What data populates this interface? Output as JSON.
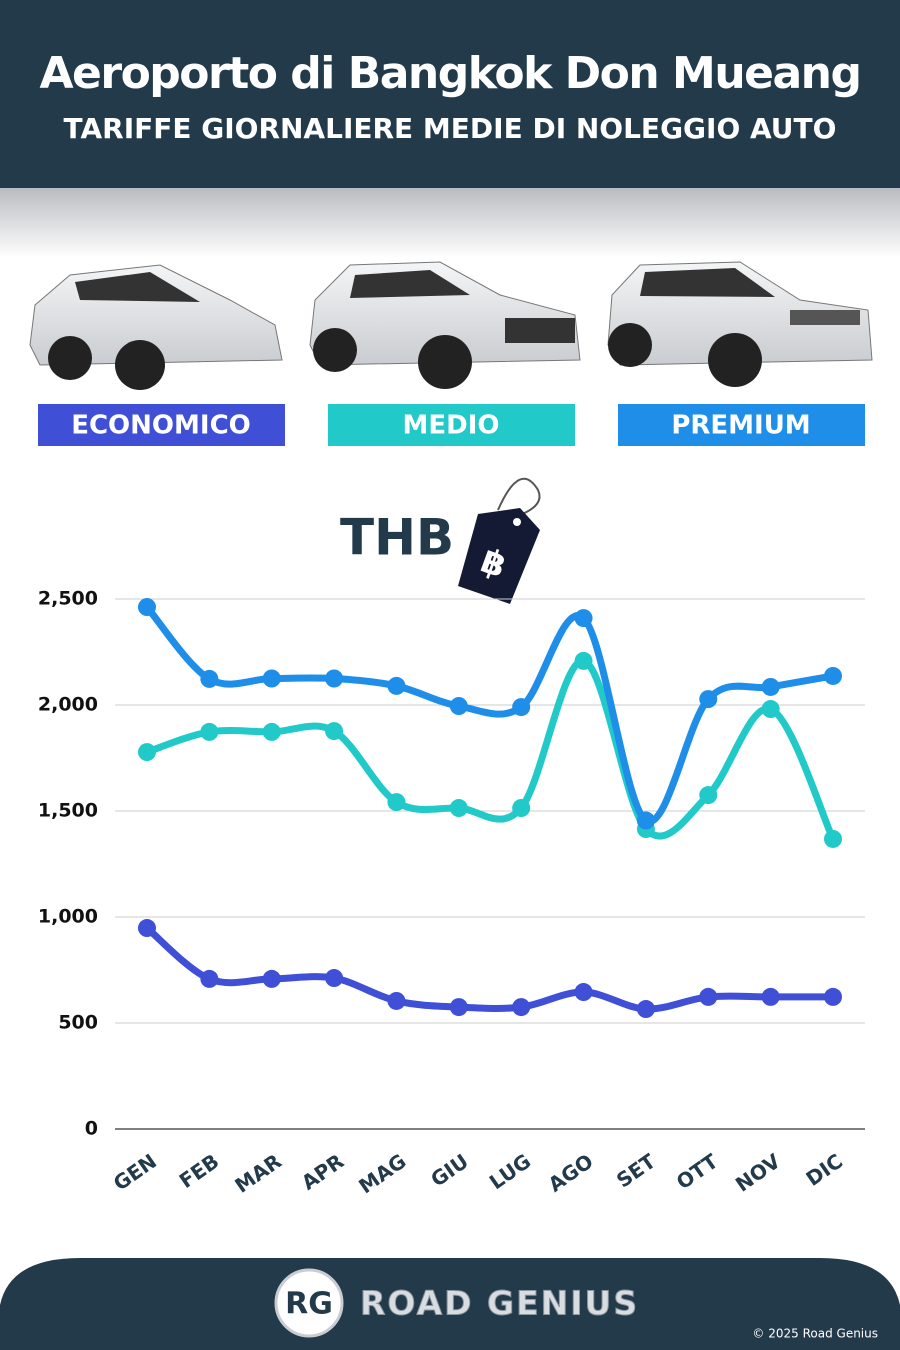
{
  "chart_data": {
    "type": "line",
    "title": "Aeroporto di Bangkok Don Mueang",
    "subtitle": "TARIFFE GIORNALIERE MEDIE DI NOLEGGIO AUTO",
    "unit": "THB",
    "currency_symbol": "฿",
    "categories": [
      "GEN",
      "FEB",
      "MAR",
      "APR",
      "MAG",
      "GIU",
      "LUG",
      "AGO",
      "SET",
      "OTT",
      "NOV",
      "DIC"
    ],
    "series": [
      {
        "name": "ECONOMICO",
        "color": "#3f4fd6",
        "values": [
          948,
          708,
          708,
          712,
          604,
          575,
          575,
          646,
          566,
          623,
          623,
          623
        ]
      },
      {
        "name": "MEDIO",
        "color": "#22c9c9",
        "values": [
          1778,
          1873,
          1873,
          1877,
          1542,
          1514,
          1514,
          2208,
          1415,
          1575,
          1981,
          1368
        ]
      },
      {
        "name": "PREMIUM",
        "color": "#1e8ee8",
        "values": [
          2462,
          2123,
          2125,
          2125,
          2090,
          1995,
          1990,
          2410,
          1455,
          2028,
          2085,
          2137
        ]
      }
    ],
    "ylim": [
      0,
      2500
    ],
    "yticks": [
      0,
      500,
      {
        "value": 1000,
        "label": "1,000"
      },
      {
        "value": 1500,
        "label": "1,500"
      },
      {
        "value": 2000,
        "label": "2,000"
      },
      {
        "value": 2500,
        "label": "2,500"
      }
    ],
    "grid": true
  },
  "footer": {
    "logo": "RG",
    "brand": "ROAD GENIUS",
    "copyright": "© 2025 Road Genius"
  }
}
